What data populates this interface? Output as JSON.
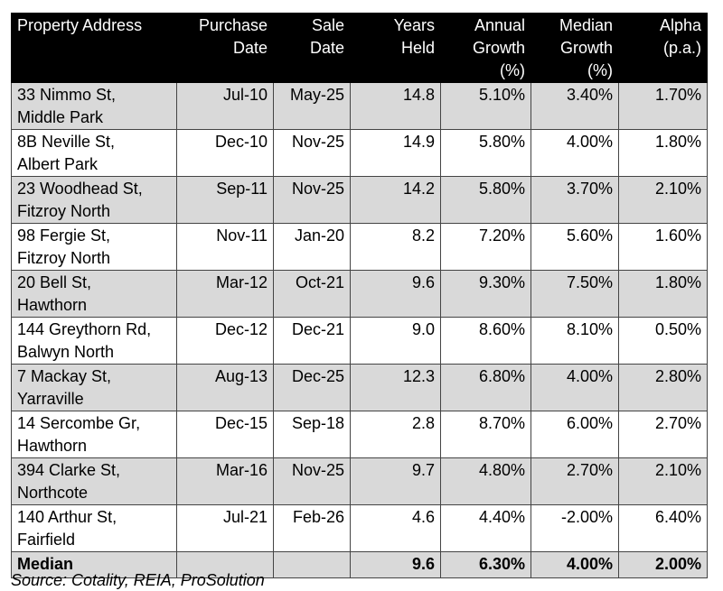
{
  "table": {
    "header": [
      [
        "Property Address"
      ],
      [
        "Purchase",
        "Date"
      ],
      [
        "Sale",
        "Date"
      ],
      [
        "Years",
        "Held"
      ],
      [
        "Annual",
        "Growth",
        "(%)"
      ],
      [
        "Median",
        "Growth",
        "(%)"
      ],
      [
        "Alpha",
        "(p.a.)"
      ]
    ],
    "rows": [
      [
        [
          "33 Nimmo St,",
          "Middle Park"
        ],
        "Jul-10",
        "May-25",
        "14.8",
        "5.10%",
        "3.40%",
        "1.70%"
      ],
      [
        [
          "8B Neville St,",
          "Albert Park"
        ],
        "Dec-10",
        "Nov-25",
        "14.9",
        "5.80%",
        "4.00%",
        "1.80%"
      ],
      [
        [
          "23 Woodhead St,",
          "Fitzroy North"
        ],
        "Sep-11",
        "Nov-25",
        "14.2",
        "5.80%",
        "3.70%",
        "2.10%"
      ],
      [
        [
          "98 Fergie St,",
          "Fitzroy North"
        ],
        "Nov-11",
        "Jan-20",
        "8.2",
        "7.20%",
        "5.60%",
        "1.60%"
      ],
      [
        [
          "20 Bell St,",
          "Hawthorn"
        ],
        "Mar-12",
        "Oct-21",
        "9.6",
        "9.30%",
        "7.50%",
        "1.80%"
      ],
      [
        [
          "144 Greythorn Rd,",
          "Balwyn North"
        ],
        "Dec-12",
        "Dec-21",
        "9.0",
        "8.60%",
        "8.10%",
        "0.50%"
      ],
      [
        [
          "7 Mackay St,",
          "Yarraville"
        ],
        "Aug-13",
        "Dec-25",
        "12.3",
        "6.80%",
        "4.00%",
        "2.80%"
      ],
      [
        [
          "14 Sercombe Gr,",
          "Hawthorn"
        ],
        "Dec-15",
        "Sep-18",
        "2.8",
        "8.70%",
        "6.00%",
        "2.70%"
      ],
      [
        [
          "394 Clarke St,",
          "Northcote"
        ],
        "Mar-16",
        "Nov-25",
        "9.7",
        "4.80%",
        "2.70%",
        "2.10%"
      ],
      [
        [
          "140 Arthur St,",
          "Fairfield"
        ],
        "Jul-21",
        "Feb-26",
        "4.6",
        "4.40%",
        "-2.00%",
        "6.40%"
      ]
    ],
    "median": {
      "label": "Median",
      "years": "9.6",
      "annual": "6.30%",
      "median": "4.00%",
      "alpha": "2.00%"
    }
  },
  "source": "Source: Cotality, REIA, ProSolution"
}
